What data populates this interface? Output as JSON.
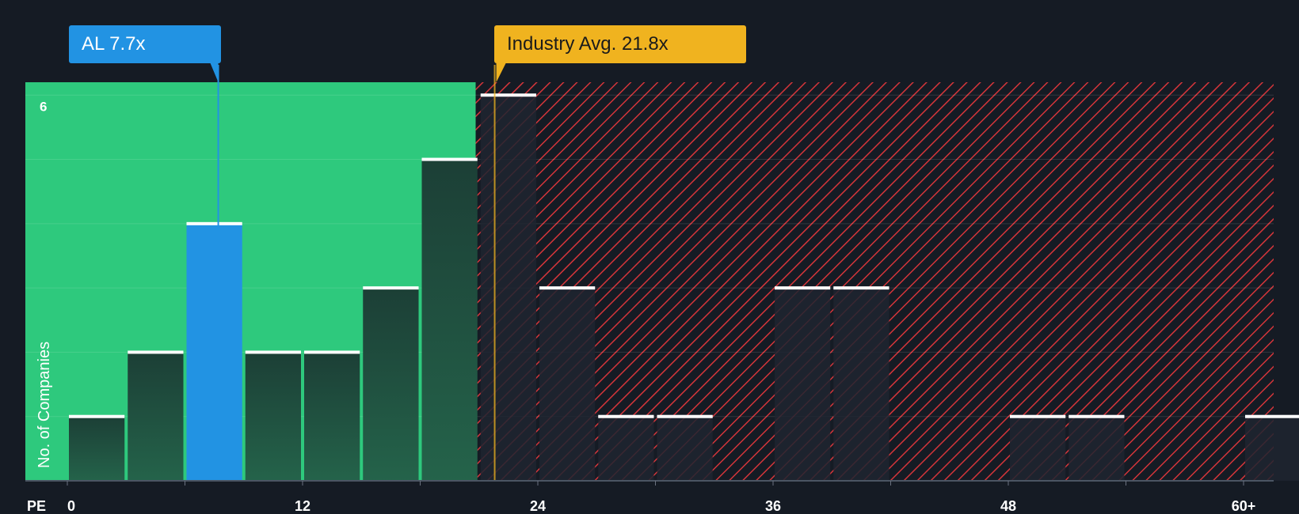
{
  "chart_data": {
    "type": "bar",
    "xlabel": "PE",
    "ylabel": "No. of Companies",
    "bin_width": 3,
    "xlim": [
      0,
      62.5
    ],
    "ylim": [
      0,
      6.2
    ],
    "x_ticks": [
      {
        "value": 0,
        "label": "0"
      },
      {
        "value": 12,
        "label": "12"
      },
      {
        "value": 24,
        "label": "24"
      },
      {
        "value": 36,
        "label": "36"
      },
      {
        "value": 48,
        "label": "48"
      },
      {
        "value": 60,
        "label": "60+"
      }
    ],
    "y_ticks": [
      {
        "value": 6,
        "label": "6"
      }
    ],
    "bins": [
      {
        "start": 0,
        "value": 1
      },
      {
        "start": 3,
        "value": 2
      },
      {
        "start": 6,
        "value": 4,
        "highlight": true
      },
      {
        "start": 9,
        "value": 2
      },
      {
        "start": 12,
        "value": 2
      },
      {
        "start": 15,
        "value": 3
      },
      {
        "start": 18,
        "value": 5
      },
      {
        "start": 21,
        "value": 6
      },
      {
        "start": 24,
        "value": 3
      },
      {
        "start": 27,
        "value": 1
      },
      {
        "start": 30,
        "value": 1
      },
      {
        "start": 33,
        "value": 0
      },
      {
        "start": 36,
        "value": 3
      },
      {
        "start": 39,
        "value": 3
      },
      {
        "start": 42,
        "value": 0
      },
      {
        "start": 45,
        "value": 0
      },
      {
        "start": 48,
        "value": 1
      },
      {
        "start": 51,
        "value": 1
      },
      {
        "start": 54,
        "value": 0
      },
      {
        "start": 57,
        "value": 0
      },
      {
        "start": 60,
        "value": 1
      }
    ],
    "company": {
      "label": "AL 7.7x",
      "value": 7.7
    },
    "industry_avg": {
      "label": "Industry Avg. 21.8x",
      "value": 21.8
    }
  },
  "colors": {
    "background": "#151b24",
    "undervalued_zone": "#2ec97d",
    "overvalued_hatch": "#d4353a",
    "bar_under": "#1d4a3b",
    "bar_over": "#1e2530",
    "highlight": "#2293e3",
    "industry": "#f0b31f",
    "bar_top": "#ffffff"
  }
}
